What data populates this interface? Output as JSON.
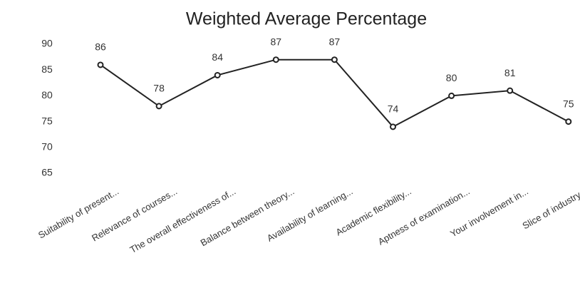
{
  "chart_data": {
    "type": "line",
    "title": "Weighted Average Percentage",
    "categories": [
      "Suitability of present...",
      "Relevance of courses...",
      "The overall effectiveness of...",
      "Balance between theory...",
      "Availability of learning...",
      "Academic flexibility...",
      "Aptness of examination...",
      "Your involvement in...",
      "Slice of industry..."
    ],
    "values": [
      86,
      78,
      84,
      87,
      87,
      74,
      80,
      81,
      75
    ],
    "color": "#222222",
    "ylim": [
      65,
      90
    ],
    "yticks": [
      65,
      70,
      75,
      80,
      85,
      90
    ],
    "grid": false
  }
}
